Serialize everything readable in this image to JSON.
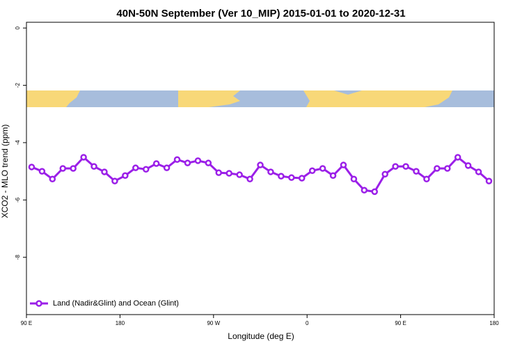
{
  "chart_data": {
    "type": "line",
    "title": "40N-50N September (Ver 10_MIP)   2015-01-01 to 2020-12-31",
    "x_label": "Longitude (deg E)",
    "y_label": "XCO2 - MLO trend (ppm)",
    "x": [
      95,
      105,
      115,
      125,
      135,
      145,
      155,
      165,
      175,
      185,
      195,
      205,
      215,
      225,
      235,
      245,
      255,
      265,
      275,
      285,
      295,
      305,
      315,
      325,
      335,
      345,
      355,
      365,
      375,
      385,
      395,
      405,
      415,
      425,
      435,
      445,
      455,
      465,
      475,
      485,
      495,
      505,
      515,
      525,
      535
    ],
    "series": [
      {
        "name": "Land (Nadir&Glint) and Ocean (Glint)",
        "color": "#9b1fe8",
        "values": [
          -4.85,
          -5.0,
          -5.27,
          -4.9,
          -4.9,
          -4.51,
          -4.83,
          -5.02,
          -5.34,
          -5.15,
          -4.88,
          -4.93,
          -4.73,
          -4.88,
          -4.59,
          -4.71,
          -4.63,
          -4.71,
          -5.05,
          -5.07,
          -5.12,
          -5.27,
          -4.78,
          -5.02,
          -5.17,
          -5.22,
          -5.24,
          -4.98,
          -4.9,
          -5.15,
          -4.78,
          -5.27,
          -5.66,
          -5.71,
          -5.1,
          -4.83,
          -4.83,
          -5.0,
          -5.27,
          -4.9,
          -4.9,
          -4.51,
          -4.8,
          -5.02,
          -5.34
        ]
      }
    ],
    "xlim": [
      90,
      540
    ],
    "xticks": [
      {
        "value": 90,
        "label": "90 E"
      },
      180,
      {
        "value": 270,
        "label": "90 W"
      },
      {
        "value": 360,
        "label": "0"
      },
      {
        "value": 450,
        "label": "90 E"
      },
      {
        "value": 540,
        "label": "180"
      }
    ],
    "ylim": [
      -10,
      0.2
    ],
    "yticks": [
      0,
      -2,
      -4,
      -6,
      -8
    ],
    "legend": "bottom-left"
  }
}
